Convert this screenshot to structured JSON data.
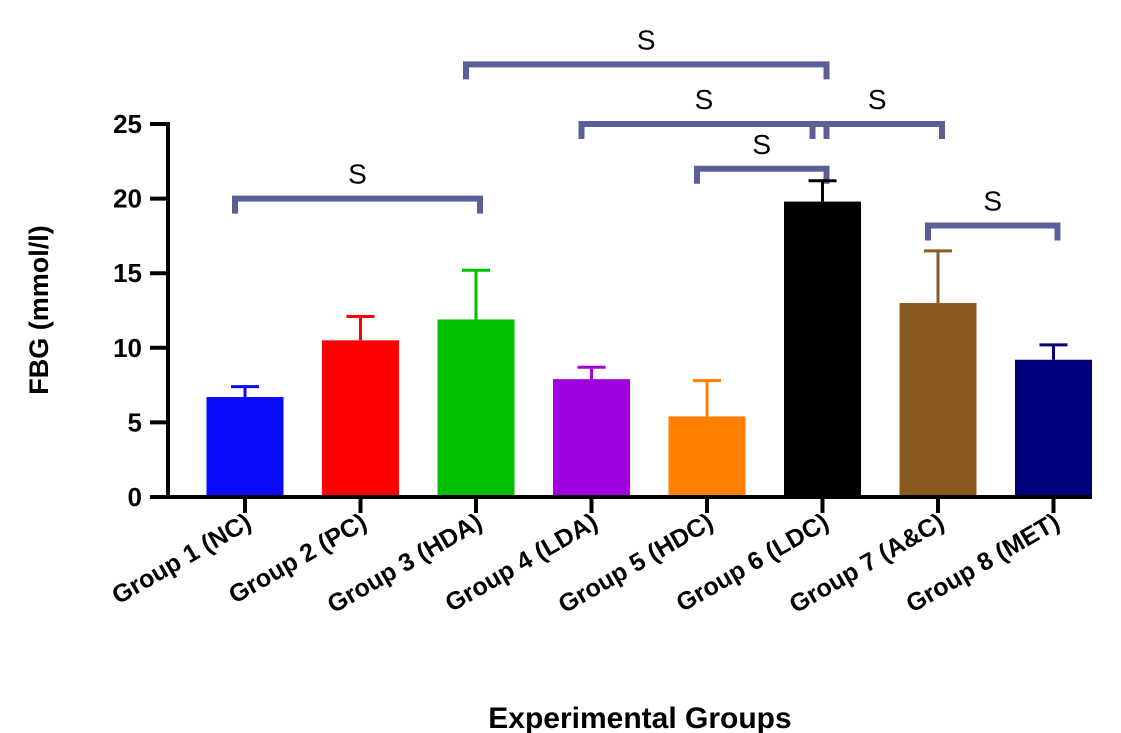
{
  "chart_data": {
    "type": "bar",
    "xlabel": "Experimental Groups",
    "ylabel": "FBG (mmol/l)",
    "ylim": [
      0,
      25
    ],
    "yticks": [
      0,
      5,
      10,
      15,
      20,
      25
    ],
    "grid": false,
    "categories": [
      "Group 1 (NC)",
      "Group 2 (PC)",
      "Group 3 (HDA)",
      "Group 4 (LDA)",
      "Group 5 (HDC)",
      "Group 6 (LDC)",
      "Group 7 (A&C)",
      "Group 8 (MET)"
    ],
    "values": [
      6.7,
      10.5,
      11.9,
      7.9,
      5.4,
      19.8,
      13.0,
      9.2
    ],
    "errors": [
      0.7,
      1.6,
      3.3,
      0.8,
      2.4,
      1.4,
      3.5,
      1.0
    ],
    "colors": [
      "#0a0aff",
      "#ff0000",
      "#00c000",
      "#a000e0",
      "#ff8000",
      "#000000",
      "#8b5a1e",
      "#00007a"
    ],
    "bracket_color": "#5a5f96",
    "significance": [
      {
        "from": 0,
        "to": 2,
        "level": 20.0,
        "label": "S"
      },
      {
        "from": 2,
        "to": 5,
        "level": 29.0,
        "label": "S"
      },
      {
        "from": 3,
        "to": 5,
        "level": 25.0,
        "label": "S"
      },
      {
        "from": 5,
        "to": 6,
        "level": 25.0,
        "label": "S"
      },
      {
        "from": 4,
        "to": 5,
        "level": 22.0,
        "label": "S"
      },
      {
        "from": 6,
        "to": 7,
        "level": 18.2,
        "label": "S"
      }
    ]
  }
}
